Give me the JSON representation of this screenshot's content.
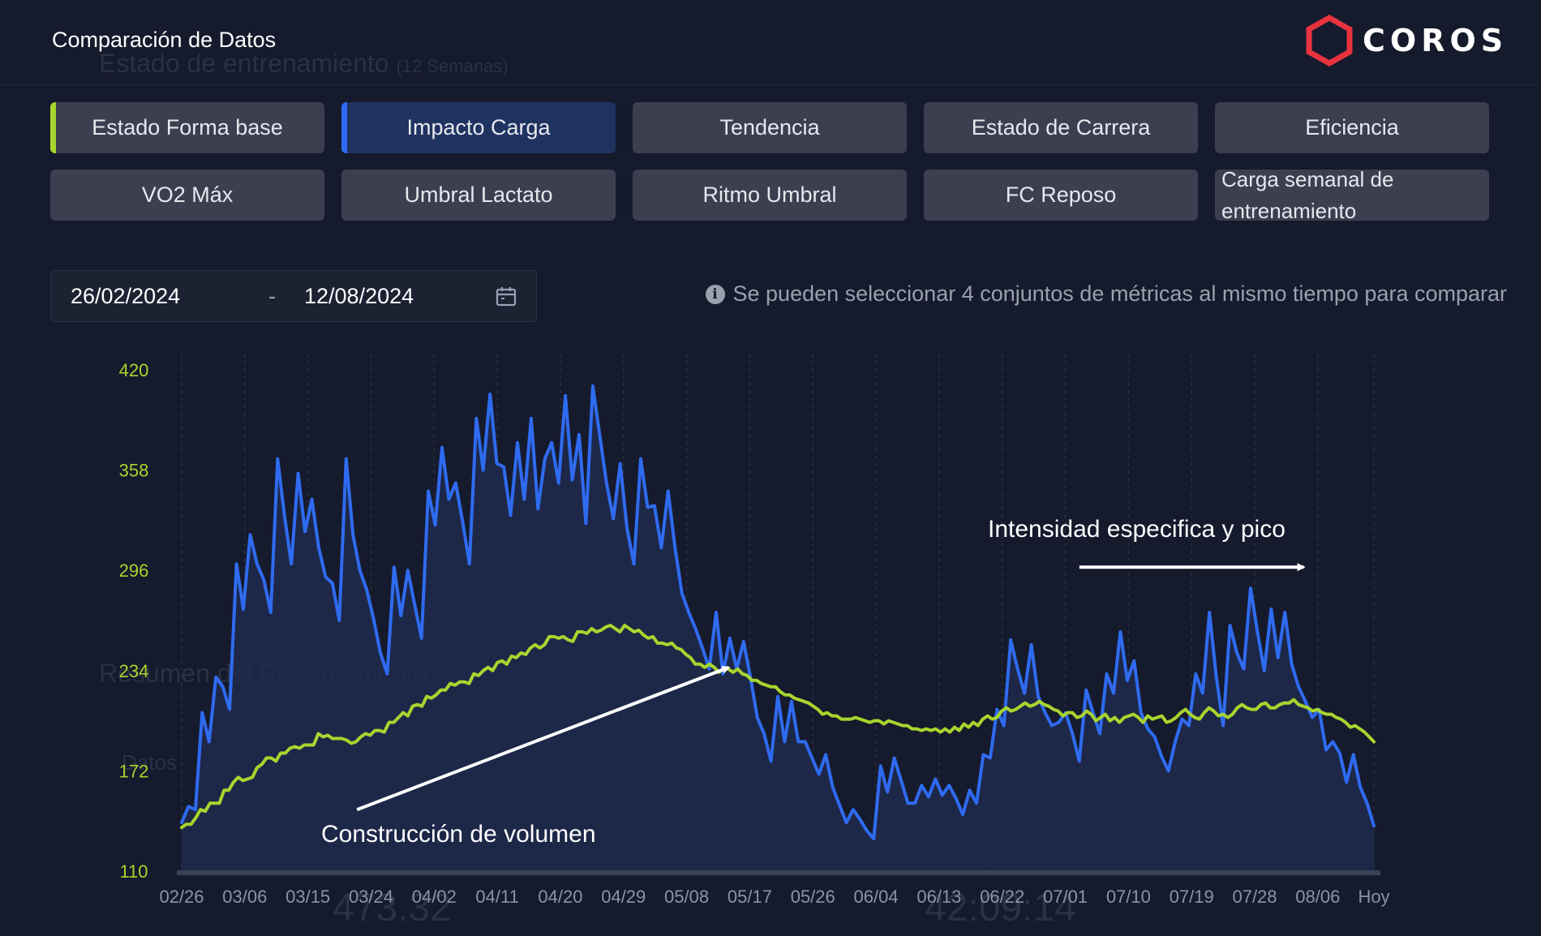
{
  "header": {
    "title": "Comparación de Datos",
    "logo": "COROS",
    "logo_color": "#e8333f"
  },
  "background_text": {
    "section1": "Estado de entrenamiento",
    "section1_sub": "(12 Semanas)",
    "section2": "Resumen del Entrenamiento",
    "item": "Datos",
    "value1": "473.32",
    "value2": "42:09:14",
    "label": "Tiempo Total"
  },
  "tabs": [
    {
      "label": "Estado Forma base",
      "indicator": "#a8d52e"
    },
    {
      "label": "Impacto Carga",
      "indicator": "#2f6bf0",
      "selected": true
    },
    {
      "label": "Tendencia"
    },
    {
      "label": "Estado de Carrera"
    },
    {
      "label": "Eficiencia"
    },
    {
      "label": "VO2 Máx"
    },
    {
      "label": "Umbral Lactato"
    },
    {
      "label": "Ritmo Umbral"
    },
    {
      "label": "FC Reposo"
    },
    {
      "label": "Carga semanal de entrenamiento"
    }
  ],
  "date_range": {
    "start": "26/02/2024",
    "separator": "-",
    "end": "12/08/2024",
    "icon": "calendar-icon"
  },
  "info": {
    "icon": "info-icon",
    "text": "Se pueden seleccionar 4 conjuntos de métricas al mismo tiempo para comparar"
  },
  "chart_data": {
    "type": "line",
    "title": "",
    "xlabel": "",
    "ylabel": "",
    "ylim": [
      110,
      420
    ],
    "yticks": [
      420,
      358,
      296,
      234,
      172,
      110
    ],
    "x_tick_labels": [
      "02/26",
      "03/06",
      "03/15",
      "03/24",
      "04/02",
      "04/11",
      "04/20",
      "04/29",
      "05/08",
      "05/17",
      "05/26",
      "06/04",
      "06/13",
      "06/22",
      "07/01",
      "07/10",
      "07/19",
      "07/28",
      "08/06",
      "Hoy"
    ],
    "x_tick_days": [
      0,
      9,
      18,
      27,
      36,
      45,
      54,
      63,
      72,
      81,
      90,
      99,
      108,
      117,
      126,
      135,
      144,
      153,
      162,
      170
    ],
    "colors": {
      "series1": "#2f6bf0",
      "series2": "#a8d52e",
      "axis_text": "#a8d52e",
      "x_text": "#8d93a3"
    },
    "series": [
      {
        "name": "Impacto Carga",
        "color": "#2f6bf0",
        "area": true,
        "values": [
          140,
          150,
          148,
          208,
          190,
          230,
          224,
          210,
          300,
          272,
          318,
          300,
          290,
          270,
          365,
          330,
          300,
          356,
          320,
          340,
          310,
          292,
          288,
          265,
          365,
          318,
          296,
          284,
          266,
          245,
          232,
          298,
          268,
          296,
          275,
          254,
          345,
          324,
          372,
          340,
          350,
          326,
          300,
          390,
          358,
          405,
          362,
          360,
          330,
          375,
          340,
          390,
          334,
          365,
          375,
          350,
          404,
          352,
          380,
          325,
          410,
          380,
          350,
          328,
          362,
          322,
          300,
          365,
          335,
          336,
          310,
          345,
          310,
          282,
          270,
          260,
          248,
          235,
          270,
          232,
          254,
          235,
          252,
          230,
          205,
          195,
          178,
          218,
          190,
          215,
          190,
          190,
          180,
          170,
          182,
          162,
          151,
          140,
          148,
          142,
          135,
          130,
          175,
          159,
          180,
          166,
          152,
          152,
          163,
          156,
          167,
          157,
          163,
          155,
          145,
          160,
          152,
          182,
          180,
          210,
          200,
          253,
          235,
          220,
          250,
          218,
          208,
          200,
          202,
          208,
          195,
          178,
          222,
          208,
          195,
          232,
          220,
          258,
          228,
          240,
          208,
          198,
          193,
          181,
          172,
          190,
          204,
          200,
          232,
          220,
          270,
          230,
          200,
          262,
          245,
          235,
          285,
          258,
          234,
          272,
          242,
          270,
          238,
          224,
          215,
          205,
          210,
          185,
          190,
          183,
          165,
          182,
          162,
          152,
          138
        ]
      },
      {
        "name": "Estado Forma base",
        "color": "#a8d52e",
        "area": false,
        "values": [
          137,
          139,
          139,
          143,
          148,
          147,
          152,
          152,
          152,
          160,
          160,
          165,
          168,
          166,
          167,
          168,
          174,
          176,
          180,
          180,
          178,
          183,
          183,
          186,
          187,
          186,
          188,
          188,
          188,
          195,
          193,
          194,
          192,
          192,
          192,
          191,
          189,
          190,
          193,
          195,
          194,
          197,
          197,
          196,
          202,
          202,
          205,
          208,
          206,
          212,
          213,
          212,
          218,
          217,
          219,
          222,
          222,
          226,
          225,
          227,
          227,
          226,
          232,
          231,
          234,
          236,
          234,
          239,
          240,
          238,
          243,
          242,
          245,
          244,
          248,
          250,
          248,
          250,
          255,
          255,
          254,
          255,
          253,
          252,
          258,
          258,
          257,
          260,
          258,
          259,
          261,
          262,
          260,
          258,
          262,
          260,
          258,
          259,
          256,
          254,
          255,
          251,
          251,
          250,
          251,
          248,
          247,
          244,
          242,
          238,
          238,
          236,
          238,
          236,
          233,
          235,
          235,
          233,
          235,
          232,
          231,
          228,
          228,
          226,
          225,
          224,
          224,
          221,
          219,
          219,
          217,
          216,
          215,
          214,
          212,
          210,
          207,
          208,
          206,
          206,
          204,
          204,
          204,
          205,
          204,
          203,
          202,
          203,
          203,
          201,
          203,
          202,
          201,
          200,
          200,
          198,
          198,
          197,
          198,
          197,
          198,
          196,
          198,
          196,
          199,
          197,
          201,
          199,
          202,
          200,
          204,
          206,
          204,
          205,
          209,
          211,
          209,
          210,
          212,
          214,
          212,
          213,
          215,
          213,
          212,
          210,
          209,
          206,
          208,
          208,
          205,
          206,
          209,
          207,
          203,
          205,
          207,
          203,
          205,
          202,
          205,
          206,
          207,
          205,
          202,
          206,
          204,
          205,
          206,
          202,
          203,
          205,
          208,
          210,
          207,
          205,
          204,
          208,
          211,
          209,
          206,
          207,
          205,
          207,
          211,
          213,
          211,
          210,
          210,
          213,
          214,
          211,
          211,
          213,
          214,
          214,
          216,
          213,
          212,
          211,
          209,
          210,
          208,
          207,
          207,
          205,
          204,
          202,
          199,
          200,
          198,
          196,
          193,
          190
        ]
      }
    ],
    "annotations": [
      {
        "text": "Construcción de volumen",
        "arrow": {
          "from_day": 25,
          "from_value": 148,
          "to_day": 78,
          "to_value": 236
        }
      },
      {
        "text": "Intensidad especifica y pico",
        "arrow": {
          "from_day": 128,
          "from_value": 298,
          "to_day": 160,
          "to_value": 298
        }
      }
    ]
  }
}
